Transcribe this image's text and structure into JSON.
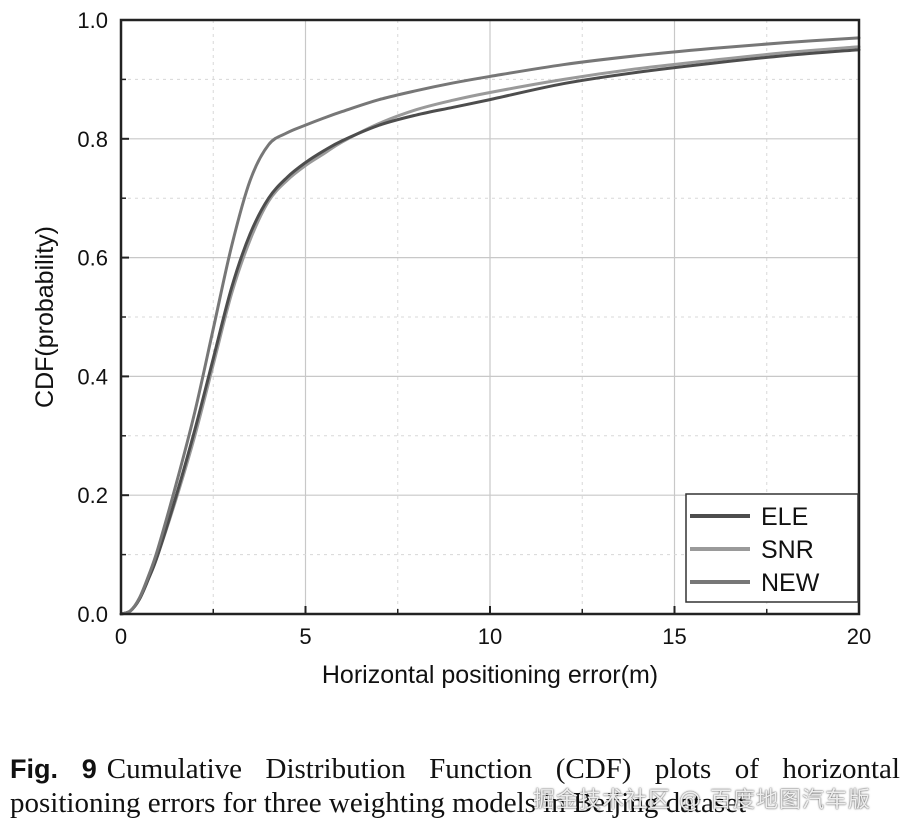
{
  "chart_data": {
    "type": "line",
    "title": "",
    "xlabel": "Horizontal positioning error(m)",
    "ylabel": "CDF(probability)",
    "xlim": [
      0,
      20
    ],
    "ylim": [
      0,
      1.0
    ],
    "x_ticks": [
      0,
      5,
      10,
      15,
      20
    ],
    "x_tick_labels": [
      "0",
      "5",
      "10",
      "15",
      "20"
    ],
    "y_ticks": [
      0,
      0.2,
      0.4,
      0.6,
      0.8,
      1.0
    ],
    "y_tick_labels": [
      "0.0",
      "0.2",
      "0.4",
      "0.6",
      "0.8",
      "1.0"
    ],
    "grid": true,
    "legend_position": "bottom-right",
    "series": [
      {
        "name": "ELE",
        "color": "#4d4d4d",
        "x": [
          0,
          0.25,
          0.5,
          0.75,
          1,
          1.5,
          2,
          2.5,
          3,
          3.5,
          4,
          4.5,
          5,
          5.5,
          6,
          7,
          8,
          9,
          10,
          12,
          14,
          16,
          18,
          20
        ],
        "y": [
          0,
          0.005,
          0.025,
          0.06,
          0.1,
          0.2,
          0.31,
          0.43,
          0.55,
          0.64,
          0.7,
          0.735,
          0.76,
          0.78,
          0.797,
          0.823,
          0.84,
          0.853,
          0.866,
          0.893,
          0.912,
          0.927,
          0.94,
          0.95
        ]
      },
      {
        "name": "SNR",
        "color": "#9a9a9a",
        "x": [
          0,
          0.25,
          0.5,
          0.75,
          1,
          1.5,
          2,
          2.5,
          3,
          3.5,
          4,
          4.5,
          5,
          5.5,
          6,
          7,
          8,
          9,
          10,
          12,
          14,
          16,
          18,
          20
        ],
        "y": [
          0,
          0.005,
          0.025,
          0.06,
          0.1,
          0.195,
          0.3,
          0.42,
          0.54,
          0.63,
          0.695,
          0.73,
          0.755,
          0.775,
          0.795,
          0.826,
          0.849,
          0.865,
          0.878,
          0.9,
          0.918,
          0.932,
          0.945,
          0.955
        ]
      },
      {
        "name": "NEW",
        "color": "#777777",
        "x": [
          0,
          0.25,
          0.5,
          0.75,
          1,
          1.5,
          2,
          2.5,
          3,
          3.5,
          4,
          4.5,
          5,
          5.5,
          6,
          7,
          8,
          9,
          10,
          12,
          14,
          16,
          18,
          20
        ],
        "y": [
          0,
          0.005,
          0.027,
          0.065,
          0.11,
          0.22,
          0.34,
          0.48,
          0.62,
          0.73,
          0.79,
          0.81,
          0.823,
          0.835,
          0.846,
          0.866,
          0.881,
          0.894,
          0.905,
          0.925,
          0.94,
          0.952,
          0.962,
          0.97
        ]
      }
    ]
  },
  "caption": {
    "label": "Fig. 9",
    "text": "Cumulative Distribution Function (CDF) plots of horizontal positioning errors for three weighting models in Beijing dataset"
  },
  "watermark": "掘金技术社区 @ 百度地图汽车版"
}
